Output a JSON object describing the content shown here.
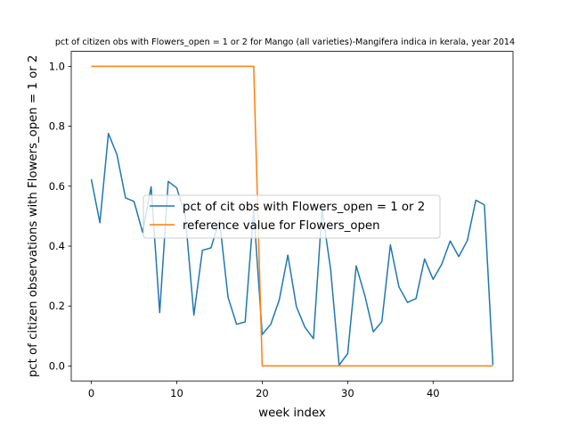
{
  "chart_data": {
    "type": "line",
    "title": "pct of citizen obs with Flowers_open = 1 or 2 for Mango (all varieties)-Mangifera indica in kerala, year 2014",
    "xlabel": "week index",
    "ylabel": "pct of citizen observations with Flowers_open = 1 or 2",
    "xlim": [
      -2.35,
      49.35
    ],
    "ylim": [
      -0.05,
      1.05
    ],
    "xticks": [
      0,
      10,
      20,
      30,
      40
    ],
    "yticks": [
      0.0,
      0.2,
      0.4,
      0.6,
      0.8,
      1.0
    ],
    "xtick_labels": [
      "0",
      "10",
      "20",
      "30",
      "40"
    ],
    "ytick_labels": [
      "0.0",
      "0.2",
      "0.4",
      "0.6",
      "0.8",
      "1.0"
    ],
    "grid": false,
    "legend": {
      "placement": "center"
    },
    "series": [
      {
        "name": "pct of cit obs with Flowers_open = 1 or 2",
        "color": "#1f77b4",
        "x": [
          0,
          1,
          2,
          3,
          4,
          5,
          6,
          7,
          8,
          9,
          10,
          11,
          12,
          13,
          14,
          15,
          16,
          17,
          18,
          19,
          20,
          21,
          22,
          23,
          24,
          25,
          26,
          27,
          28,
          29,
          30,
          31,
          32,
          33,
          34,
          35,
          36,
          37,
          38,
          39,
          40,
          41,
          42,
          43,
          44,
          45,
          46,
          47
        ],
        "y": [
          0.623,
          0.478,
          0.776,
          0.705,
          0.561,
          0.549,
          0.446,
          0.598,
          0.178,
          0.616,
          0.594,
          0.5,
          0.17,
          0.386,
          0.394,
          0.486,
          0.229,
          0.139,
          0.147,
          0.521,
          0.105,
          0.139,
          0.221,
          0.37,
          0.198,
          0.129,
          0.091,
          0.521,
          0.324,
          0.003,
          0.041,
          0.334,
          0.236,
          0.114,
          0.148,
          0.404,
          0.264,
          0.212,
          0.225,
          0.357,
          0.289,
          0.339,
          0.417,
          0.365,
          0.418,
          0.553,
          0.538,
          0.003
        ]
      },
      {
        "name": "reference value for Flowers_open",
        "color": "#ff7f0e",
        "x": [
          0,
          1,
          2,
          3,
          4,
          5,
          6,
          7,
          8,
          9,
          10,
          11,
          12,
          13,
          14,
          15,
          16,
          17,
          18,
          19,
          20,
          21,
          22,
          23,
          24,
          25,
          26,
          27,
          28,
          29,
          30,
          31,
          32,
          33,
          34,
          35,
          36,
          37,
          38,
          39,
          40,
          41,
          42,
          43,
          44,
          45,
          46,
          47
        ],
        "y": [
          1,
          1,
          1,
          1,
          1,
          1,
          1,
          1,
          1,
          1,
          1,
          1,
          1,
          1,
          1,
          1,
          1,
          1,
          1,
          1,
          0,
          0,
          0,
          0,
          0,
          0,
          0,
          0,
          0,
          0,
          0,
          0,
          0,
          0,
          0,
          0,
          0,
          0,
          0,
          0,
          0,
          0,
          0,
          0,
          0,
          0,
          0,
          0
        ]
      }
    ]
  }
}
